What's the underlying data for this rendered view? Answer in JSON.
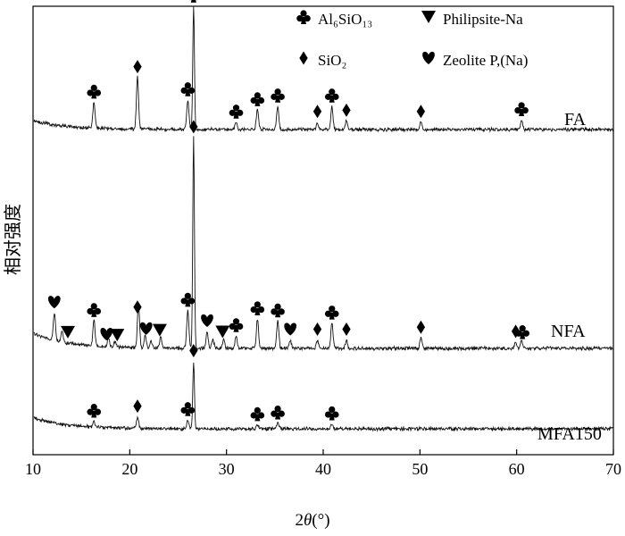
{
  "chart_data": {
    "type": "line",
    "xlabel": "2θ(°)",
    "xlabel_parts": [
      "2",
      "θ",
      "(°)"
    ],
    "ylabel": "相对强度",
    "xlim": [
      10,
      70
    ],
    "xticks": [
      10,
      20,
      30,
      40,
      50,
      60,
      70
    ],
    "grid": false,
    "legend_position": "top-right",
    "legend": [
      {
        "symbol": "club",
        "label": "Al₆SiO₁₃"
      },
      {
        "symbol": "triangle",
        "label": "Philipsite-Na"
      },
      {
        "symbol": "diamond",
        "label": "SiO₂"
      },
      {
        "symbol": "heart",
        "label": "Zeolite P,(Na)"
      }
    ],
    "series": [
      {
        "name": "FA",
        "baseline_pct": 12,
        "peaks": [
          {
            "x": 16.3,
            "h": 21
          },
          {
            "x": 20.8,
            "h": 42
          },
          {
            "x": 26.0,
            "h": 24
          },
          {
            "x": 26.6,
            "h": 100
          },
          {
            "x": 31.0,
            "h": 6
          },
          {
            "x": 33.2,
            "h": 16
          },
          {
            "x": 35.3,
            "h": 19
          },
          {
            "x": 39.4,
            "h": 6
          },
          {
            "x": 40.9,
            "h": 19
          },
          {
            "x": 42.4,
            "h": 7
          },
          {
            "x": 50.1,
            "h": 6
          },
          {
            "x": 60.5,
            "h": 8
          }
        ],
        "markers": [
          {
            "x": 16.3,
            "symbol": "club"
          },
          {
            "x": 20.8,
            "symbol": "diamond"
          },
          {
            "x": 26.0,
            "symbol": "club"
          },
          {
            "x": 26.6,
            "symbol": "club"
          },
          {
            "x": 26.6,
            "symbol": "diamond"
          },
          {
            "x": 31.0,
            "symbol": "club"
          },
          {
            "x": 33.2,
            "symbol": "club"
          },
          {
            "x": 35.3,
            "symbol": "club"
          },
          {
            "x": 39.4,
            "symbol": "diamond"
          },
          {
            "x": 40.9,
            "symbol": "club"
          },
          {
            "x": 42.4,
            "symbol": "diamond"
          },
          {
            "x": 50.1,
            "symbol": "diamond"
          },
          {
            "x": 60.5,
            "symbol": "club"
          }
        ]
      },
      {
        "name": "NFA",
        "baseline_pct": 12,
        "peaks": [
          {
            "x": 12.2,
            "h": 13
          },
          {
            "x": 13.0,
            "h": 5
          },
          {
            "x": 16.3,
            "h": 12
          },
          {
            "x": 17.8,
            "h": 4
          },
          {
            "x": 18.5,
            "h": 3
          },
          {
            "x": 20.9,
            "h": 21
          },
          {
            "x": 21.6,
            "h": 6
          },
          {
            "x": 22.2,
            "h": 3
          },
          {
            "x": 23.2,
            "h": 5
          },
          {
            "x": 26.0,
            "h": 18
          },
          {
            "x": 26.6,
            "h": 100
          },
          {
            "x": 28.0,
            "h": 8
          },
          {
            "x": 28.6,
            "h": 4
          },
          {
            "x": 29.7,
            "h": 4
          },
          {
            "x": 31.0,
            "h": 6
          },
          {
            "x": 33.2,
            "h": 14
          },
          {
            "x": 35.3,
            "h": 13
          },
          {
            "x": 36.6,
            "h": 4
          },
          {
            "x": 39.4,
            "h": 4
          },
          {
            "x": 40.9,
            "h": 12
          },
          {
            "x": 42.4,
            "h": 4
          },
          {
            "x": 50.1,
            "h": 5
          },
          {
            "x": 59.9,
            "h": 3
          },
          {
            "x": 60.5,
            "h": 4
          }
        ],
        "markers": [
          {
            "x": 12.2,
            "symbol": "heart"
          },
          {
            "x": 13.6,
            "symbol": "triangle"
          },
          {
            "x": 16.3,
            "symbol": "club"
          },
          {
            "x": 17.6,
            "symbol": "heart"
          },
          {
            "x": 18.7,
            "symbol": "triangle"
          },
          {
            "x": 20.8,
            "symbol": "diamond"
          },
          {
            "x": 21.7,
            "symbol": "heart"
          },
          {
            "x": 23.1,
            "symbol": "triangle"
          },
          {
            "x": 26.0,
            "symbol": "club"
          },
          {
            "x": 26.6,
            "symbol": "diamond"
          },
          {
            "x": 28.0,
            "symbol": "heart"
          },
          {
            "x": 29.6,
            "symbol": "triangle"
          },
          {
            "x": 31.0,
            "symbol": "club"
          },
          {
            "x": 33.2,
            "symbol": "club"
          },
          {
            "x": 35.3,
            "symbol": "club"
          },
          {
            "x": 36.6,
            "symbol": "heart"
          },
          {
            "x": 39.4,
            "symbol": "diamond"
          },
          {
            "x": 40.9,
            "symbol": "club"
          },
          {
            "x": 42.4,
            "symbol": "diamond"
          },
          {
            "x": 50.1,
            "symbol": "diamond"
          },
          {
            "x": 59.9,
            "symbol": "diamond"
          },
          {
            "x": 60.6,
            "symbol": "club"
          }
        ]
      },
      {
        "name": "MFA150",
        "baseline_pct": 22,
        "peaks": [
          {
            "x": 16.3,
            "h": 7
          },
          {
            "x": 20.8,
            "h": 14
          },
          {
            "x": 26.0,
            "h": 11
          },
          {
            "x": 26.6,
            "h": 82
          },
          {
            "x": 33.2,
            "h": 5
          },
          {
            "x": 35.3,
            "h": 7
          },
          {
            "x": 40.9,
            "h": 6
          }
        ],
        "markers": [
          {
            "x": 16.3,
            "symbol": "club"
          },
          {
            "x": 20.8,
            "symbol": "diamond"
          },
          {
            "x": 26.0,
            "symbol": "club"
          },
          {
            "x": 26.6,
            "symbol": "diamond"
          },
          {
            "x": 33.2,
            "symbol": "club"
          },
          {
            "x": 35.3,
            "symbol": "club"
          },
          {
            "x": 40.9,
            "symbol": "club"
          }
        ]
      }
    ]
  }
}
